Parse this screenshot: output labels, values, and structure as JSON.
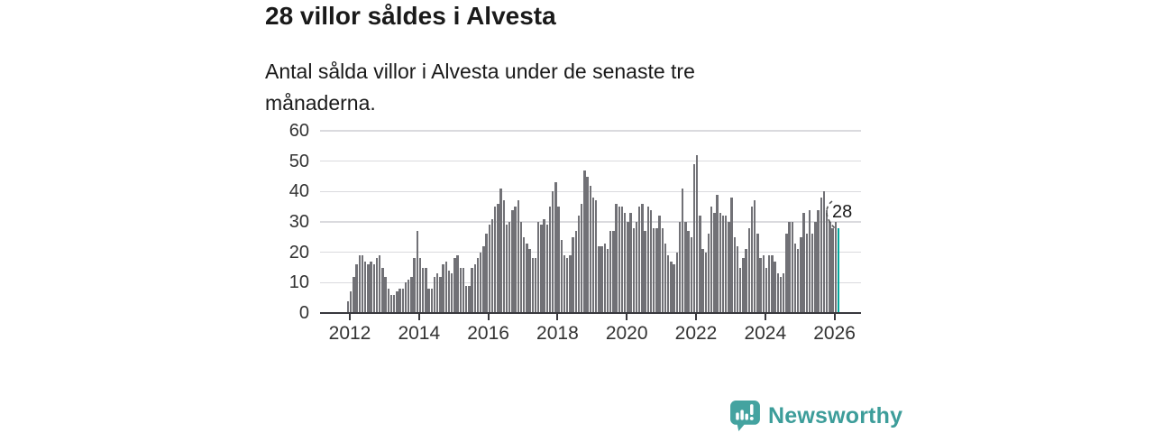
{
  "header": {
    "title": "28 villor såldes i Alvesta",
    "subtitle": "Antal sålda villor i Alvesta under de senaste tre månaderna."
  },
  "chart_data": {
    "type": "bar",
    "title": "28 villor såldes i Alvesta",
    "subtitle": "Antal sålda villor i Alvesta under de senaste tre månaderna.",
    "x_start_month": "2011-12",
    "x_end_month": "2026-02",
    "x_tick_labels": [
      "2012",
      "2014",
      "2016",
      "2018",
      "2020",
      "2022",
      "2024",
      "2026"
    ],
    "y_ticks": [
      0,
      10,
      20,
      30,
      40,
      50,
      60
    ],
    "ylim": [
      0,
      60
    ],
    "grid": true,
    "bar_color": "#717176",
    "values": [
      4,
      7,
      12,
      16,
      19,
      19,
      17,
      16,
      17,
      16,
      18,
      19,
      15,
      12,
      8,
      6,
      6,
      7,
      8,
      8,
      10,
      11,
      12,
      18,
      27,
      18,
      15,
      15,
      8,
      8,
      12,
      13,
      12,
      16,
      17,
      14,
      13,
      18,
      19,
      15,
      15,
      9,
      9,
      15,
      16,
      18,
      20,
      22,
      26,
      29,
      31,
      35,
      36,
      41,
      37,
      29,
      30,
      34,
      35,
      37,
      30,
      25,
      23,
      21,
      18,
      18,
      30,
      29,
      31,
      29,
      35,
      40,
      43,
      35,
      24,
      19,
      18,
      19,
      25,
      27,
      32,
      36,
      47,
      45,
      42,
      38,
      37,
      22,
      22,
      23,
      21,
      27,
      27,
      36,
      35,
      35,
      33,
      30,
      33,
      28,
      30,
      35,
      36,
      27,
      35,
      34,
      28,
      28,
      32,
      28,
      23,
      19,
      17,
      16,
      20,
      30,
      41,
      30,
      27,
      25,
      49,
      52,
      32,
      21,
      20,
      26,
      35,
      33,
      39,
      33,
      32,
      32,
      30,
      38,
      25,
      22,
      15,
      18,
      21,
      28,
      35,
      37,
      26,
      18,
      19,
      15,
      19,
      19,
      17,
      13,
      12,
      13,
      26,
      30,
      30,
      23,
      21,
      25,
      33,
      26,
      34,
      26,
      30,
      34,
      38,
      40,
      34,
      30,
      28,
      30,
      28
    ],
    "highlight": {
      "last_bar": true,
      "value": 28,
      "label": "28",
      "color": "#00a79c"
    }
  },
  "annotation": {
    "label": "28"
  },
  "footer": {
    "brand": "Newsworthy"
  },
  "colors": {
    "bar": "#717176",
    "highlight": "#00a79c",
    "axis": "#38383d",
    "grid": "#dadade",
    "text": "#1a1a1a",
    "tick_text": "#333333",
    "brand": "#3d9d9a"
  }
}
